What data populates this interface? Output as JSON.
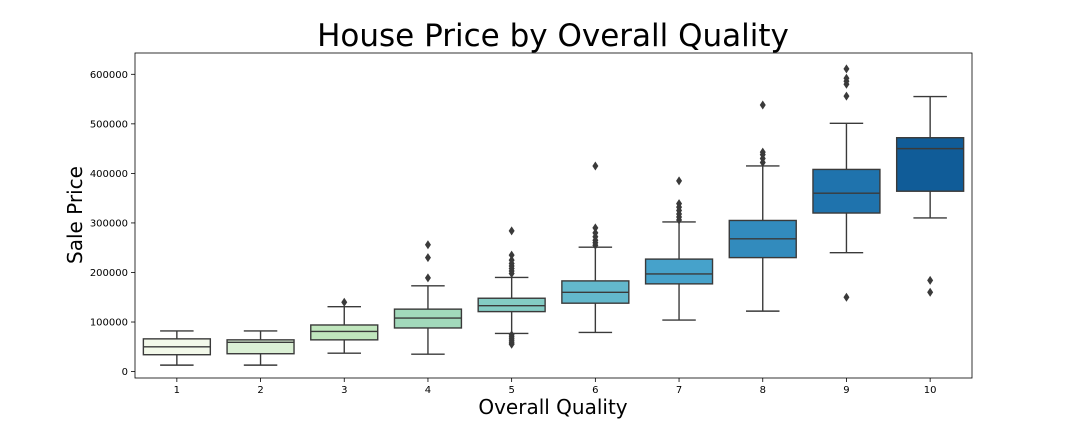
{
  "chart_data": {
    "type": "box",
    "title": "House Price by Overall Quality",
    "xlabel": "Overall Quality",
    "ylabel": "Sale Price",
    "categories": [
      "1",
      "2",
      "3",
      "4",
      "5",
      "6",
      "7",
      "8",
      "9",
      "10"
    ],
    "ylim": [
      -13000,
      643000
    ],
    "yticks": [
      0,
      100000,
      200000,
      300000,
      400000,
      500000,
      600000
    ],
    "ytick_labels": [
      "0",
      "100000",
      "200000",
      "300000",
      "400000",
      "500000",
      "600000"
    ],
    "grid": false,
    "legend": "none",
    "boxes": [
      {
        "category": "1",
        "whisker_low": 13000,
        "q1": 34000,
        "median": 50000,
        "q3": 66000,
        "whisker_high": 82000,
        "fliers": [],
        "color": "#f3f9ea"
      },
      {
        "category": "2",
        "whisker_low": 13000,
        "q1": 36000,
        "median": 59000,
        "q3": 64000,
        "whisker_high": 82000,
        "fliers": [],
        "color": "#dbf0d5"
      },
      {
        "category": "3",
        "whisker_low": 37000,
        "q1": 64000,
        "median": 81000,
        "q3": 94000,
        "whisker_high": 131000,
        "fliers": [
          140000
        ],
        "color": "#c0e6bd"
      },
      {
        "category": "4",
        "whisker_low": 35000,
        "q1": 88000,
        "median": 108000,
        "q3": 126000,
        "whisker_high": 173000,
        "fliers": [
          189000,
          230000,
          256000
        ],
        "color": "#a2d9bb"
      },
      {
        "category": "5",
        "whisker_low": 77000,
        "q1": 121000,
        "median": 133000,
        "q3": 148000,
        "whisker_high": 190000,
        "fliers": [
          198000,
          203000,
          208000,
          213000,
          218000,
          225000,
          235000,
          284000,
          74000,
          70000,
          66000,
          62000,
          58000,
          55000
        ],
        "color": "#84ccc4"
      },
      {
        "category": "6",
        "whisker_low": 79000,
        "q1": 138000,
        "median": 160000,
        "q3": 183000,
        "whisker_high": 251000,
        "fliers": [
          255000,
          260000,
          265000,
          272000,
          280000,
          290000,
          415000
        ],
        "color": "#63b8cc"
      },
      {
        "category": "7",
        "whisker_low": 104000,
        "q1": 177000,
        "median": 197000,
        "q3": 227000,
        "whisker_high": 302000,
        "fliers": [
          306000,
          312000,
          318000,
          325000,
          332000,
          339000,
          385000
        ],
        "color": "#46a2cb"
      },
      {
        "category": "8",
        "whisker_low": 122000,
        "q1": 230000,
        "median": 268000,
        "q3": 305000,
        "whisker_high": 415000,
        "fliers": [
          422000,
          430000,
          438000,
          443000,
          538000
        ],
        "color": "#328bbd"
      },
      {
        "category": "9",
        "whisker_low": 240000,
        "q1": 320000,
        "median": 360000,
        "q3": 408000,
        "whisker_high": 501000,
        "fliers": [
          150000,
          556000,
          580000,
          586000,
          592000,
          611000
        ],
        "color": "#1f73ad"
      },
      {
        "category": "10",
        "whisker_low": 310000,
        "q1": 364000,
        "median": 450000,
        "q3": 472000,
        "whisker_high": 555000,
        "fliers": [
          160000,
          184000
        ],
        "color": "#105c98"
      }
    ]
  }
}
